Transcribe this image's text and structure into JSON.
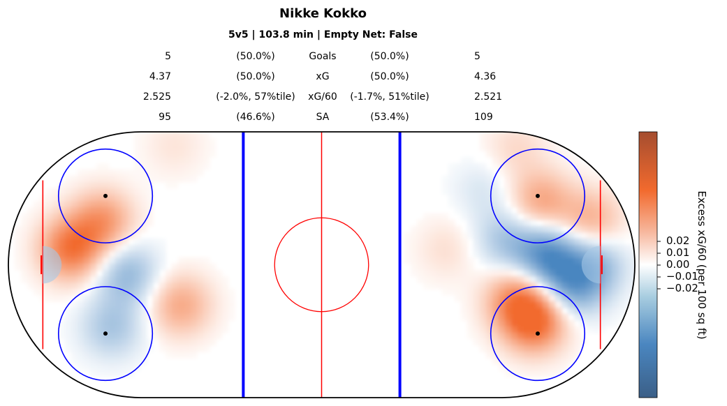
{
  "title": "Nikke Kokko",
  "subtitle": "5v5 | 103.8 min | Empty Net: False",
  "stats": [
    {
      "left": "5",
      "left_pct": "(50.0%)",
      "label": "Goals",
      "right_pct": "(50.0%)",
      "right": "5"
    },
    {
      "left": "4.37",
      "left_pct": "(50.0%)",
      "label": "xG",
      "right_pct": "(50.0%)",
      "right": "4.36"
    },
    {
      "left": "2.525",
      "left_pct": "(-2.0%, 57%tile)",
      "label": "xG/60",
      "right_pct": "(-1.7%, 51%tile)",
      "right": "2.521"
    },
    {
      "left": "95",
      "left_pct": "(46.6%)",
      "label": "SA",
      "right_pct": "(53.4%)",
      "right": "109"
    }
  ],
  "colors": {
    "board": "#000000",
    "blue_line": "#0000ff",
    "red_line": "#ff0000",
    "positive": "#f26a2e",
    "negative": "#4a86c0",
    "neutral": "#ffffff"
  },
  "colorbar": {
    "label": "Excess xG/60 (per 100 sq ft)",
    "ticks": [
      "0.02",
      "0.01",
      "0.00",
      "−0.01",
      "−0.02"
    ]
  },
  "chart_data": {
    "type": "heatmap",
    "title": "Nikke Kokko",
    "subtitle": "5v5 | 103.8 min | Empty Net: False",
    "colorbar_label": "Excess xG/60 (per 100 sq ft)",
    "colorbar_ticks": [
      0.02,
      0.01,
      0.0,
      -0.01,
      -0.02
    ],
    "hotspots": [
      {
        "x": -80,
        "y": 5,
        "value": 0.025
      },
      {
        "x": -70,
        "y": 14,
        "value": 0.018
      },
      {
        "x": -62,
        "y": -3,
        "value": -0.015
      },
      {
        "x": -67,
        "y": -20,
        "value": -0.012
      },
      {
        "x": -45,
        "y": -13,
        "value": 0.015
      },
      {
        "x": -47,
        "y": 38,
        "value": 0.004
      },
      {
        "x": 70,
        "y": 20,
        "value": 0.016
      },
      {
        "x": 68,
        "y": -18,
        "value": 0.028
      },
      {
        "x": 62,
        "y": -11,
        "value": 0.018
      },
      {
        "x": 72,
        "y": 3,
        "value": -0.024
      },
      {
        "x": 80,
        "y": -7,
        "value": -0.018
      },
      {
        "x": 59,
        "y": 8,
        "value": -0.012
      },
      {
        "x": 86,
        "y": 14,
        "value": 0.014
      },
      {
        "x": 87,
        "y": 0,
        "value": -0.015
      },
      {
        "x": 52,
        "y": 24,
        "value": -0.005
      },
      {
        "x": 40,
        "y": 5,
        "value": 0.005
      },
      {
        "x": 62,
        "y": 37,
        "value": 0.006
      }
    ]
  }
}
